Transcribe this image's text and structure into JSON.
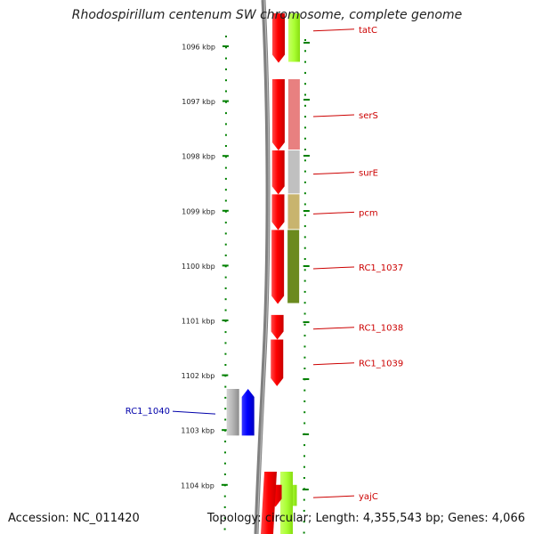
{
  "title": "Rhodospirillum centenum SW chromosome, complete genome",
  "footer": {
    "accession_label": "Accession:",
    "accession": "NC_011420",
    "topology_label": "Topology:",
    "topology": "circular",
    "length_label": "Length:",
    "length": "4,355,543 bp",
    "genes_label": "Genes:",
    "genes": "4,066"
  },
  "colors": {
    "forward_gene": "#ff0000",
    "reverse_gene": "#0000ff",
    "pseudo_gene": "#b4b4b4",
    "ruler": "#008000",
    "backbone": "#808080",
    "forward_label": "#cc0000",
    "reverse_label": "#0000aa"
  },
  "scale_labels": [
    "1096 kbp",
    "1097 kbp",
    "1098 kbp",
    "1099 kbp",
    "1100 kbp",
    "1101 kbp",
    "1102 kbp",
    "1103 kbp",
    "1104 kbp"
  ],
  "genes": [
    {
      "name": "tatC",
      "strand": "forward",
      "cog_color": "#aaff33",
      "start_kbp": 1095.4,
      "end_kbp": 1096.3
    },
    {
      "name": "serS",
      "strand": "forward",
      "cog_color": "#e88080",
      "start_kbp": 1096.6,
      "end_kbp": 1097.9
    },
    {
      "name": "surE",
      "strand": "forward",
      "cog_color": "#c0c0c0",
      "start_kbp": 1097.9,
      "end_kbp": 1098.7
    },
    {
      "name": "pcm",
      "strand": "forward",
      "cog_color": "#c8b46e",
      "start_kbp": 1098.7,
      "end_kbp": 1099.35
    },
    {
      "name": "RC1_1037",
      "strand": "forward",
      "cog_color": "#6b8a1e",
      "start_kbp": 1099.35,
      "end_kbp": 1100.7
    },
    {
      "name": "RC1_1038",
      "strand": "forward",
      "cog_color": null,
      "start_kbp": 1100.9,
      "end_kbp": 1101.35
    },
    {
      "name": "RC1_1039",
      "strand": "forward",
      "cog_color": null,
      "start_kbp": 1101.35,
      "end_kbp": 1102.2
    },
    {
      "name": "RC1_1040",
      "strand": "reverse",
      "cog_color": "#c0c0c0",
      "start_kbp": 1102.25,
      "end_kbp": 1103.1
    },
    {
      "name": "yajC",
      "strand": "forward",
      "cog_color": "#aaff33",
      "start_kbp": 1104.0,
      "end_kbp": 1104.4
    }
  ]
}
